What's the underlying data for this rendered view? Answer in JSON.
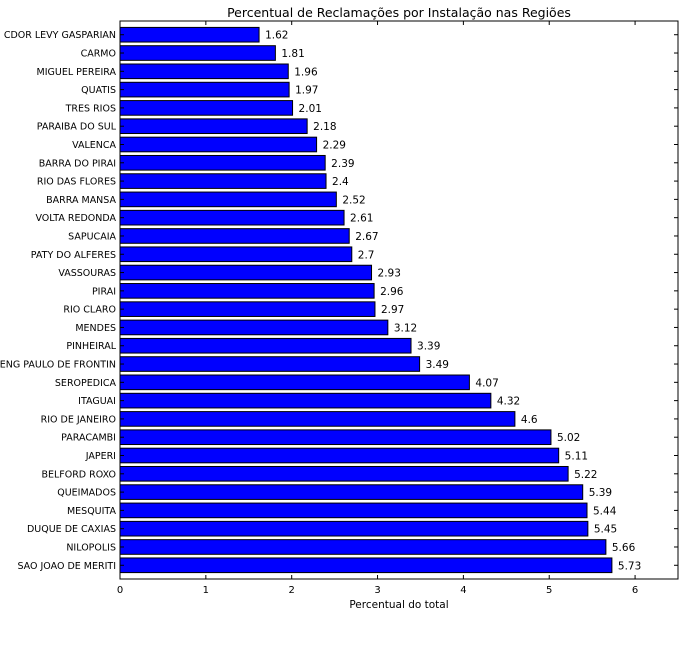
{
  "chart_data": {
    "type": "bar",
    "orientation": "horizontal",
    "title": "Percentual de Reclamações por Instalação nas Regiões",
    "xlabel": "Percentual do total",
    "ylabel": "",
    "xlim": [
      0,
      6.5
    ],
    "xticks": [
      "0",
      "1",
      "2",
      "3",
      "4",
      "5",
      "6"
    ],
    "grid": false,
    "bar_color": "#0000ff",
    "categories": [
      "CDOR LEVY GASPARIAN",
      "CARMO",
      "MIGUEL PEREIRA",
      "QUATIS",
      "TRES RIOS",
      "PARAIBA DO SUL",
      "VALENCA",
      "BARRA DO PIRAI",
      "RIO DAS FLORES",
      "BARRA MANSA",
      "VOLTA REDONDA",
      "SAPUCAIA",
      "PATY DO ALFERES",
      "VASSOURAS",
      "PIRAI",
      "RIO CLARO",
      "MENDES",
      "PINHEIRAL",
      "ENG PAULO DE FRONTIN",
      "SEROPEDICA",
      "ITAGUAI",
      "RIO DE JANEIRO",
      "PARACAMBI",
      "JAPERI",
      "BELFORD ROXO",
      "QUEIMADOS",
      "MESQUITA",
      "DUQUE DE CAXIAS",
      "NILOPOLIS",
      "SAO JOAO DE MERITI"
    ],
    "values": [
      1.62,
      1.81,
      1.96,
      1.97,
      2.01,
      2.18,
      2.29,
      2.39,
      2.4,
      2.52,
      2.61,
      2.67,
      2.7,
      2.93,
      2.96,
      2.97,
      3.12,
      3.39,
      3.49,
      4.07,
      4.32,
      4.6,
      5.02,
      5.11,
      5.22,
      5.39,
      5.44,
      5.45,
      5.66,
      5.73
    ],
    "value_labels": [
      "1.62",
      "1.81",
      "1.96",
      "1.97",
      "2.01",
      "2.18",
      "2.29",
      "2.39",
      "2.4",
      "2.52",
      "2.61",
      "2.67",
      "2.7",
      "2.93",
      "2.96",
      "2.97",
      "3.12",
      "3.39",
      "3.49",
      "4.07",
      "4.32",
      "4.6",
      "5.02",
      "5.11",
      "5.22",
      "5.39",
      "5.44",
      "5.45",
      "5.66",
      "5.73"
    ]
  }
}
